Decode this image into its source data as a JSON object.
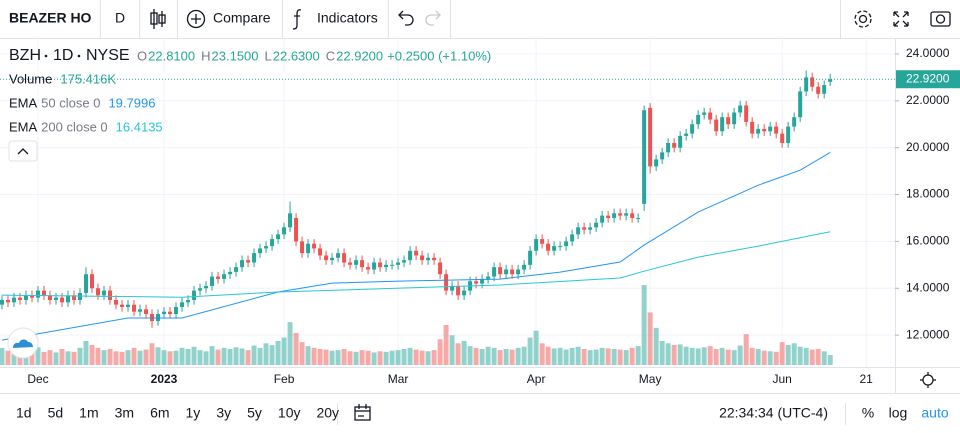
{
  "toolbar": {
    "symbol": "BEAZER HO",
    "interval": "D",
    "compare": "Compare",
    "indicators": "Indicators"
  },
  "chart_data": {
    "type": "candlestick",
    "symbol": "BZH",
    "interval": "1D",
    "exchange": "NYSE",
    "legend_keys": {
      "open": "O",
      "high": "H",
      "low": "L",
      "close": "C"
    },
    "open": [
      13.3,
      13.5,
      13.4,
      13.6,
      13.5,
      13.7,
      13.6,
      13.9,
      13.7,
      13.5,
      13.6,
      13.4,
      13.7,
      13.5,
      13.8,
      14.6,
      14.0,
      13.7,
      13.9,
      13.5,
      13.3,
      13.2,
      13.3,
      13.0,
      13.1,
      12.9,
      12.6,
      12.9,
      13.0,
      12.9,
      13.2,
      13.4,
      13.5,
      13.9,
      14.0,
      14.1,
      14.5,
      14.4,
      14.6,
      14.7,
      14.9,
      15.2,
      15.1,
      15.5,
      15.7,
      15.8,
      16.1,
      16.3,
      16.6,
      17.0,
      16.0,
      15.5,
      15.9,
      15.7,
      15.4,
      15.2,
      15.3,
      15.5,
      15.1,
      15.0,
      15.2,
      14.9,
      14.8,
      15.1,
      14.9,
      15.0,
      15.0,
      15.1,
      15.2,
      15.6,
      15.4,
      15.2,
      15.3,
      15.1,
      14.6,
      13.9,
      14.1,
      13.7,
      13.9,
      14.3,
      14.2,
      14.4,
      14.5,
      14.9,
      14.6,
      14.8,
      14.6,
      14.8,
      15.0,
      15.6,
      16.1,
      15.9,
      15.6,
      15.8,
      15.8,
      16.0,
      16.3,
      16.6,
      16.5,
      16.6,
      16.8,
      17.1,
      17.0,
      17.2,
      17.1,
      17.2,
      17.0,
      17.6,
      21.7,
      19.2,
      19.5,
      19.8,
      20.2,
      20.0,
      20.5,
      20.6,
      21.0,
      21.4,
      21.5,
      21.2,
      20.7,
      21.3,
      21.0,
      21.5,
      21.8,
      21.1,
      20.6,
      20.8,
      20.7,
      20.9,
      20.6,
      20.2,
      20.9,
      21.3,
      22.4,
      23.0,
      22.6,
      22.3,
      22.81
    ],
    "high": [
      13.7,
      13.7,
      13.8,
      13.8,
      13.9,
      13.9,
      14.1,
      14.1,
      13.9,
      13.8,
      13.8,
      13.9,
      13.9,
      14.0,
      14.9,
      14.8,
      14.2,
      14.1,
      14.1,
      13.7,
      13.5,
      13.5,
      13.5,
      13.3,
      13.3,
      13.1,
      13.1,
      13.2,
      13.2,
      13.4,
      13.6,
      13.7,
      14.1,
      14.2,
      14.3,
      14.7,
      14.7,
      14.8,
      14.9,
      15.1,
      15.4,
      15.4,
      15.7,
      15.9,
      16.0,
      16.3,
      16.5,
      16.8,
      17.7,
      17.2,
      16.2,
      16.1,
      16.1,
      15.9,
      15.6,
      15.5,
      15.7,
      15.7,
      15.3,
      15.4,
      15.4,
      15.1,
      15.3,
      15.3,
      15.2,
      15.2,
      15.3,
      15.4,
      15.8,
      15.8,
      15.6,
      15.5,
      15.5,
      15.3,
      14.8,
      14.3,
      14.3,
      14.1,
      14.5,
      14.5,
      14.6,
      14.7,
      15.1,
      15.1,
      15.0,
      15.0,
      15.0,
      15.2,
      15.8,
      16.3,
      16.3,
      16.1,
      16.0,
      16.0,
      16.2,
      16.5,
      16.8,
      16.8,
      16.8,
      17.0,
      17.3,
      17.3,
      17.4,
      17.4,
      17.4,
      17.4,
      17.2,
      21.8,
      21.9,
      19.7,
      20.0,
      20.4,
      20.4,
      20.7,
      20.8,
      21.2,
      21.6,
      21.7,
      21.7,
      21.4,
      21.5,
      21.5,
      21.7,
      22.0,
      22.0,
      21.3,
      21.0,
      21.0,
      21.1,
      21.1,
      20.8,
      21.1,
      21.5,
      22.6,
      23.3,
      23.2,
      22.8,
      22.87,
      23.15
    ],
    "low": [
      13.1,
      13.2,
      13.2,
      13.3,
      13.3,
      13.4,
      13.4,
      13.5,
      13.3,
      13.3,
      13.2,
      13.2,
      13.3,
      13.3,
      13.6,
      13.8,
      13.5,
      13.5,
      13.3,
      13.1,
      13.0,
      13.0,
      12.8,
      12.8,
      12.7,
      12.3,
      12.4,
      12.7,
      12.7,
      12.7,
      13.0,
      13.2,
      13.3,
      13.7,
      13.8,
      13.9,
      14.2,
      14.2,
      14.4,
      14.5,
      14.7,
      14.9,
      14.9,
      15.3,
      15.5,
      15.6,
      15.9,
      16.1,
      16.4,
      15.8,
      15.3,
      15.3,
      15.5,
      15.2,
      15.0,
      15.0,
      15.1,
      14.9,
      14.8,
      14.8,
      14.7,
      14.6,
      14.6,
      14.7,
      14.7,
      14.8,
      14.8,
      14.9,
      15.0,
      15.2,
      15.0,
      15.0,
      15.0,
      14.4,
      13.7,
      13.7,
      13.5,
      13.5,
      13.7,
      14.0,
      14.0,
      14.2,
      14.3,
      14.4,
      14.4,
      14.4,
      14.4,
      14.6,
      14.8,
      15.4,
      15.7,
      15.4,
      15.4,
      15.6,
      15.6,
      15.8,
      16.1,
      16.3,
      16.3,
      16.4,
      16.6,
      16.8,
      16.8,
      16.9,
      16.9,
      16.8,
      16.8,
      17.3,
      18.9,
      19.0,
      19.3,
      19.6,
      19.8,
      19.8,
      20.3,
      20.4,
      20.8,
      21.2,
      21.0,
      20.5,
      20.5,
      20.8,
      20.8,
      21.3,
      20.9,
      20.4,
      20.4,
      20.5,
      20.5,
      20.4,
      20.0,
      20.0,
      20.7,
      21.1,
      22.2,
      22.4,
      22.1,
      22.1,
      22.63
    ],
    "close": [
      13.5,
      13.4,
      13.6,
      13.5,
      13.7,
      13.6,
      13.9,
      13.7,
      13.5,
      13.6,
      13.4,
      13.7,
      13.5,
      13.8,
      14.6,
      14.0,
      13.7,
      13.9,
      13.5,
      13.3,
      13.2,
      13.3,
      13.0,
      13.1,
      12.9,
      12.6,
      12.9,
      13.0,
      12.9,
      13.2,
      13.4,
      13.5,
      13.9,
      14.0,
      14.1,
      14.5,
      14.4,
      14.6,
      14.7,
      14.9,
      15.2,
      15.1,
      15.5,
      15.7,
      15.8,
      16.1,
      16.3,
      16.6,
      17.2,
      16.0,
      15.5,
      15.9,
      15.7,
      15.4,
      15.2,
      15.3,
      15.5,
      15.1,
      15.0,
      15.2,
      14.9,
      14.8,
      15.1,
      14.9,
      15.0,
      15.0,
      15.1,
      15.2,
      15.6,
      15.4,
      15.2,
      15.3,
      15.2,
      14.6,
      13.9,
      14.1,
      13.7,
      13.9,
      14.3,
      14.2,
      14.4,
      14.5,
      14.9,
      14.6,
      14.8,
      14.6,
      14.8,
      15.0,
      15.6,
      16.1,
      15.9,
      15.6,
      15.8,
      15.8,
      16.0,
      16.3,
      16.6,
      16.5,
      16.6,
      16.8,
      17.1,
      17.0,
      17.2,
      17.1,
      17.2,
      17.0,
      17.0,
      21.6,
      19.2,
      19.5,
      19.8,
      20.2,
      20.0,
      20.5,
      20.6,
      21.0,
      21.4,
      21.5,
      21.2,
      20.7,
      21.3,
      21.0,
      21.5,
      21.8,
      21.1,
      20.6,
      20.8,
      20.7,
      20.9,
      20.6,
      20.2,
      20.9,
      21.3,
      22.4,
      23.0,
      22.6,
      22.3,
      22.67,
      22.92
    ],
    "last_labels": {
      "open": "22.8100",
      "high": "23.1500",
      "low": "22.6300",
      "close": "22.9200"
    },
    "change_label": "+0.2500 (+1.10%)",
    "up_color": "#26a69a",
    "down_color": "#ef5350",
    "volume": {
      "name": "Volume",
      "values": [
        300,
        250,
        280,
        220,
        260,
        240,
        310,
        230,
        260,
        220,
        280,
        240,
        230,
        300,
        420,
        350,
        300,
        260,
        280,
        240,
        230,
        260,
        300,
        250,
        270,
        380,
        310,
        260,
        240,
        250,
        300,
        280,
        320,
        260,
        240,
        330,
        270,
        300,
        280,
        310,
        290,
        260,
        340,
        300,
        380,
        350,
        420,
        480,
        750,
        560,
        400,
        330,
        300,
        280,
        270,
        250,
        260,
        280,
        240,
        230,
        260,
        250,
        220,
        240,
        230,
        250,
        260,
        280,
        300,
        270,
        250,
        240,
        260,
        450,
        700,
        520,
        380,
        420,
        330,
        300,
        280,
        320,
        300,
        260,
        280,
        270,
        300,
        320,
        480,
        600,
        380,
        320,
        290,
        300,
        270,
        300,
        320,
        280,
        260,
        270,
        300,
        290,
        280,
        270,
        260,
        300,
        330,
        1400,
        920,
        650,
        420,
        380,
        350,
        360,
        320,
        300,
        290,
        310,
        330,
        280,
        300,
        270,
        260,
        340,
        540,
        300,
        280,
        250,
        240,
        230,
        400,
        350,
        380,
        320,
        300,
        270,
        280,
        240,
        175.416
      ],
      "last_label": "175.416K"
    },
    "series": [
      {
        "name": "EMA",
        "params": "50 close 0",
        "color": "#2196f3",
        "x": [
          0,
          21,
          30,
          46,
          55,
          67,
          83,
          93,
          103,
          107,
          116,
          126,
          133,
          138
        ],
        "values": [
          11.79,
          12.73,
          12.73,
          13.84,
          14.22,
          14.31,
          14.39,
          14.69,
          15.12,
          15.84,
          17.25,
          18.4,
          19.04,
          19.7996
        ]
      },
      {
        "name": "EMA",
        "params": "200 close 0",
        "color": "#26c6da",
        "x": [
          0,
          30,
          46,
          67,
          83,
          103,
          107,
          116,
          126,
          138
        ],
        "values": [
          13.71,
          13.62,
          13.84,
          14.01,
          14.14,
          14.44,
          14.73,
          15.33,
          15.8,
          16.4135
        ]
      }
    ],
    "ylim": [
      10.64,
      24.68
    ],
    "yticks": [
      {
        "value": 24,
        "label": "24.0000"
      },
      {
        "value": 22,
        "label": "22.0000"
      },
      {
        "value": 20,
        "label": "20.0000"
      },
      {
        "value": 18,
        "label": "18.0000"
      },
      {
        "value": 16,
        "label": "16.0000"
      },
      {
        "value": 14,
        "label": "14.0000"
      },
      {
        "value": 12,
        "label": "12.0000"
      }
    ],
    "xlim": [
      -0.33,
      148.8
    ],
    "xticks": [
      {
        "value": 6,
        "label": "Dec"
      },
      {
        "value": 27,
        "label": "2023"
      },
      {
        "value": 47,
        "label": "Feb"
      },
      {
        "value": 66,
        "label": "Mar"
      },
      {
        "value": 89,
        "label": "Apr"
      },
      {
        "value": 108,
        "label": "May"
      },
      {
        "value": 130,
        "label": "Jun"
      },
      {
        "value": 144,
        "label": "21"
      }
    ],
    "grid": true
  },
  "timeframes": [
    "1d",
    "5d",
    "1m",
    "3m",
    "6m",
    "1y",
    "3y",
    "5y",
    "10y",
    "20y"
  ],
  "clock": "22:34:34 (UTC-4)",
  "scale_options": [
    "%",
    "log",
    "auto"
  ]
}
